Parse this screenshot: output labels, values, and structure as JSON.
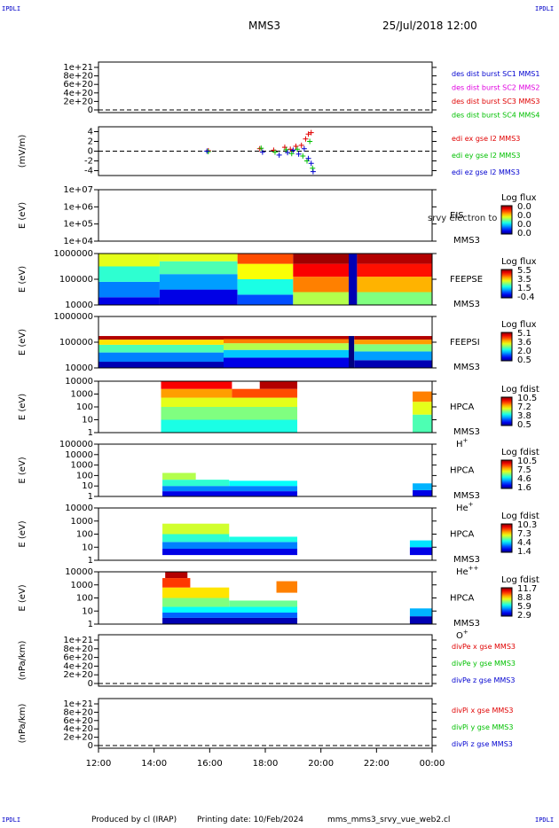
{
  "header": {
    "corner_label": "IPDLI",
    "title": "MMS3",
    "date": "25/Jul/2018 12:00"
  },
  "footer": {
    "produced_by": "Produced by cl (IRAP)",
    "printing_date": "Printing date: 10/Feb/2024",
    "script_name": "mms_mms3_srvy_vue_web2.cl"
  },
  "time_axis": {
    "ticks": [
      "12:00",
      "14:00",
      "16:00",
      "18:00",
      "20:00",
      "22:00",
      "00:00"
    ],
    "range_hours": [
      12,
      24
    ]
  },
  "colors": {
    "red": "#e00000",
    "green": "#00c000",
    "blue": "#0000d0",
    "magenta": "#e000e0",
    "label_blue": "#0000c8"
  },
  "chart_data": [
    {
      "type": "line",
      "panel": "des-dist-burst",
      "ylabel": "",
      "yticks": [
        "1e+21",
        "8e+20",
        "6e+20",
        "4e+20",
        "2e+20",
        "0"
      ],
      "ylim": [
        0,
        1e+21
      ],
      "legend": [
        {
          "name": "des dist burst SC1 MMS1",
          "color": "#0000d0"
        },
        {
          "name": "des dist burst SC2 MMS2",
          "color": "#e000e0"
        },
        {
          "name": "des dist burst SC3 MMS3",
          "color": "#e00000"
        },
        {
          "name": "des dist burst SC4 MMS4",
          "color": "#00c000"
        }
      ],
      "series": []
    },
    {
      "type": "scatter",
      "panel": "edi-e-gse",
      "ylabel": "(mV/m)",
      "yticks": [
        "4",
        "2",
        "0",
        "-2",
        "-4"
      ],
      "ylim": [
        -5,
        5
      ],
      "legend": [
        {
          "name": "edi ex gse l2 MMS3",
          "color": "#e00000"
        },
        {
          "name": "edi ey gse l2 MMS3",
          "color": "#00c000"
        },
        {
          "name": "edi ez gse l2 MMS3",
          "color": "#0000d0"
        }
      ],
      "series": [
        {
          "name": "edi ex gse l2 MMS3",
          "color": "#e00000",
          "x": [
            15.95,
            17.8,
            18.3,
            18.7,
            18.9,
            19.1,
            19.3,
            19.45,
            19.55,
            19.65
          ],
          "y": [
            0.1,
            0.5,
            0.2,
            0.8,
            0.4,
            1.0,
            1.2,
            2.5,
            3.5,
            3.8
          ]
        },
        {
          "name": "edi ey gse l2 MMS3",
          "color": "#00c000",
          "x": [
            15.95,
            17.85,
            18.35,
            18.75,
            18.95,
            19.15,
            19.35,
            19.5,
            19.6,
            19.7
          ],
          "y": [
            -0.1,
            0.6,
            -0.2,
            0.3,
            -0.5,
            0.4,
            -1.0,
            -2.0,
            2.0,
            -3.5
          ]
        },
        {
          "name": "edi ez gse l2 MMS3",
          "color": "#0000d0",
          "x": [
            15.9,
            17.9,
            18.5,
            18.8,
            19.0,
            19.2,
            19.4,
            19.55,
            19.65,
            19.72
          ],
          "y": [
            0.0,
            -0.2,
            -0.8,
            -0.3,
            0.2,
            -0.6,
            0.5,
            -1.5,
            -2.5,
            -4.2
          ]
        }
      ]
    },
    {
      "type": "heatmap",
      "panel": "eis",
      "ylabel": "E (eV)",
      "yticks": [
        "1e+07",
        "1e+06",
        "1e+05",
        "1e+04"
      ],
      "labels": [
        "EIS",
        "MMS3"
      ],
      "overlay_text": "srvy electron to",
      "colorbar": {
        "title": "Log flux",
        "ticks": [
          "0.0",
          "0.0",
          "0.0",
          "0.0"
        ]
      },
      "blocks": []
    },
    {
      "type": "heatmap",
      "panel": "feepse",
      "ylabel": "E (eV)",
      "yticks": [
        "1000000",
        "100000",
        "10000"
      ],
      "labels": [
        "FEEPSE",
        "MMS3"
      ],
      "colorbar": {
        "title": "Log flux",
        "ticks": [
          "5.5",
          "3.5",
          "1.5",
          "-0.4"
        ]
      },
      "blocks": [
        {
          "t0": 12.0,
          "t1": 14.2,
          "e0": 0,
          "e1": 0.15,
          "level": 0.1
        },
        {
          "t0": 12.0,
          "t1": 14.2,
          "e0": 0.15,
          "e1": 0.45,
          "level": 0.25
        },
        {
          "t0": 12.0,
          "t1": 14.2,
          "e0": 0.45,
          "e1": 0.75,
          "level": 0.42
        },
        {
          "t0": 12.0,
          "t1": 14.2,
          "e0": 0.75,
          "e1": 1.0,
          "level": 0.6
        },
        {
          "t0": 14.2,
          "t1": 17.0,
          "e0": 0,
          "e1": 0.3,
          "level": 0.1
        },
        {
          "t0": 14.2,
          "t1": 17.0,
          "e0": 0.3,
          "e1": 0.6,
          "level": 0.28
        },
        {
          "t0": 14.2,
          "t1": 17.0,
          "e0": 0.6,
          "e1": 0.85,
          "level": 0.45
        },
        {
          "t0": 14.2,
          "t1": 17.0,
          "e0": 0.85,
          "e1": 1.0,
          "level": 0.6
        },
        {
          "t0": 17.0,
          "t1": 19.0,
          "e0": 0,
          "e1": 0.2,
          "level": 0.2
        },
        {
          "t0": 17.0,
          "t1": 19.0,
          "e0": 0.2,
          "e1": 0.5,
          "level": 0.4
        },
        {
          "t0": 17.0,
          "t1": 19.0,
          "e0": 0.5,
          "e1": 0.8,
          "level": 0.62
        },
        {
          "t0": 17.0,
          "t1": 19.0,
          "e0": 0.8,
          "e1": 1.0,
          "level": 0.8
        },
        {
          "t0": 19.0,
          "t1": 21.0,
          "e0": 0,
          "e1": 0.25,
          "level": 0.55
        },
        {
          "t0": 19.0,
          "t1": 21.0,
          "e0": 0.25,
          "e1": 0.55,
          "level": 0.75
        },
        {
          "t0": 19.0,
          "t1": 21.0,
          "e0": 0.55,
          "e1": 0.8,
          "level": 0.88
        },
        {
          "t0": 19.0,
          "t1": 21.0,
          "e0": 0.8,
          "e1": 1.0,
          "level": 0.97
        },
        {
          "t0": 21.0,
          "t1": 21.3,
          "e0": 0,
          "e1": 1.0,
          "level": 0.05
        },
        {
          "t0": 21.3,
          "t1": 24.0,
          "e0": 0,
          "e1": 0.25,
          "level": 0.5
        },
        {
          "t0": 21.3,
          "t1": 24.0,
          "e0": 0.25,
          "e1": 0.55,
          "level": 0.7
        },
        {
          "t0": 21.3,
          "t1": 24.0,
          "e0": 0.55,
          "e1": 0.8,
          "level": 0.86
        },
        {
          "t0": 21.3,
          "t1": 24.0,
          "e0": 0.8,
          "e1": 1.0,
          "level": 0.95
        }
      ]
    },
    {
      "type": "heatmap",
      "panel": "feepsi",
      "ylabel": "E (eV)",
      "yticks": [
        "1000000",
        "100000",
        "10000"
      ],
      "labels": [
        "FEEPSI",
        "MMS3"
      ],
      "colorbar": {
        "title": "Log flux",
        "ticks": [
          "5.1",
          "3.6",
          "2.0",
          "0.5"
        ]
      },
      "blocks": [
        {
          "t0": 12.0,
          "t1": 16.5,
          "e0": 0.0,
          "e1": 0.12,
          "level": 0.05
        },
        {
          "t0": 12.0,
          "t1": 16.5,
          "e0": 0.12,
          "e1": 0.3,
          "level": 0.25
        },
        {
          "t0": 12.0,
          "t1": 16.5,
          "e0": 0.3,
          "e1": 0.45,
          "level": 0.45
        },
        {
          "t0": 12.0,
          "t1": 16.5,
          "e0": 0.45,
          "e1": 0.55,
          "level": 0.65
        },
        {
          "t0": 12.0,
          "t1": 16.5,
          "e0": 0.55,
          "e1": 0.62,
          "level": 0.95
        },
        {
          "t0": 16.5,
          "t1": 21.0,
          "e0": 0.0,
          "e1": 0.2,
          "level": 0.1
        },
        {
          "t0": 16.5,
          "t1": 21.0,
          "e0": 0.2,
          "e1": 0.35,
          "level": 0.32
        },
        {
          "t0": 16.5,
          "t1": 21.0,
          "e0": 0.35,
          "e1": 0.48,
          "level": 0.55
        },
        {
          "t0": 16.5,
          "t1": 21.0,
          "e0": 0.48,
          "e1": 0.56,
          "level": 0.75
        },
        {
          "t0": 16.5,
          "t1": 21.0,
          "e0": 0.56,
          "e1": 0.62,
          "level": 0.95
        },
        {
          "t0": 21.0,
          "t1": 21.2,
          "e0": 0.0,
          "e1": 0.62,
          "level": 0.0
        },
        {
          "t0": 21.2,
          "t1": 24.0,
          "e0": 0.0,
          "e1": 0.15,
          "level": 0.05
        },
        {
          "t0": 21.2,
          "t1": 24.0,
          "e0": 0.15,
          "e1": 0.32,
          "level": 0.28
        },
        {
          "t0": 21.2,
          "t1": 24.0,
          "e0": 0.32,
          "e1": 0.46,
          "level": 0.5
        },
        {
          "t0": 21.2,
          "t1": 24.0,
          "e0": 0.46,
          "e1": 0.55,
          "level": 0.72
        },
        {
          "t0": 21.2,
          "t1": 24.0,
          "e0": 0.55,
          "e1": 0.62,
          "level": 0.95
        }
      ]
    },
    {
      "type": "heatmap",
      "panel": "hpca-h",
      "ylabel": "E (eV)",
      "yticks": [
        "10000",
        "1000",
        "100",
        "10",
        "1"
      ],
      "labels": [
        "HPCA",
        "MMS3"
      ],
      "species": {
        "base": "H",
        "sup": "+"
      },
      "colorbar": {
        "title": "Log fdist",
        "ticks": [
          "10.5",
          "7.2",
          "3.8",
          "0.5"
        ]
      },
      "blocks": [
        {
          "t0": 14.25,
          "t1": 19.15,
          "e0": 0.0,
          "e1": 0.25,
          "level": 0.4
        },
        {
          "t0": 14.25,
          "t1": 19.15,
          "e0": 0.25,
          "e1": 0.5,
          "level": 0.5
        },
        {
          "t0": 14.25,
          "t1": 19.15,
          "e0": 0.5,
          "e1": 0.68,
          "level": 0.6
        },
        {
          "t0": 14.25,
          "t1": 16.8,
          "e0": 0.68,
          "e1": 0.85,
          "level": 0.72
        },
        {
          "t0": 16.8,
          "t1": 19.15,
          "e0": 0.68,
          "e1": 0.85,
          "level": 0.8
        },
        {
          "t0": 14.25,
          "t1": 16.8,
          "e0": 0.85,
          "e1": 1.0,
          "level": 0.88
        },
        {
          "t0": 17.8,
          "t1": 19.15,
          "e0": 0.85,
          "e1": 1.0,
          "level": 0.95
        },
        {
          "t0": 23.3,
          "t1": 24.0,
          "e0": 0.0,
          "e1": 0.35,
          "level": 0.45
        },
        {
          "t0": 23.3,
          "t1": 24.0,
          "e0": 0.35,
          "e1": 0.6,
          "level": 0.6
        },
        {
          "t0": 23.3,
          "t1": 24.0,
          "e0": 0.6,
          "e1": 0.8,
          "level": 0.75
        }
      ]
    },
    {
      "type": "heatmap",
      "panel": "hpca-he",
      "ylabel": "E (eV)",
      "yticks": [
        "100000",
        "10000",
        "1000",
        "100",
        "10",
        "1"
      ],
      "labels": [
        "HPCA",
        "MMS3"
      ],
      "species": {
        "base": "He",
        "sup": "+"
      },
      "colorbar": {
        "title": "Log fdist",
        "ticks": [
          "10.5",
          "7.5",
          "4.6",
          "1.6"
        ]
      },
      "blocks": [
        {
          "t0": 14.3,
          "t1": 19.15,
          "e0": 0.0,
          "e1": 0.1,
          "level": 0.1
        },
        {
          "t0": 14.3,
          "t1": 19.15,
          "e0": 0.1,
          "e1": 0.2,
          "level": 0.25
        },
        {
          "t0": 14.3,
          "t1": 16.7,
          "e0": 0.2,
          "e1": 0.32,
          "level": 0.42
        },
        {
          "t0": 16.7,
          "t1": 19.15,
          "e0": 0.2,
          "e1": 0.3,
          "level": 0.38
        },
        {
          "t0": 14.3,
          "t1": 15.5,
          "e0": 0.32,
          "e1": 0.45,
          "level": 0.55
        },
        {
          "t0": 23.3,
          "t1": 24.0,
          "e0": 0.0,
          "e1": 0.12,
          "level": 0.1
        },
        {
          "t0": 23.3,
          "t1": 24.0,
          "e0": 0.12,
          "e1": 0.25,
          "level": 0.3
        }
      ]
    },
    {
      "type": "heatmap",
      "panel": "hpca-he2",
      "ylabel": "E (eV)",
      "yticks": [
        "10000",
        "1000",
        "100",
        "10",
        "1"
      ],
      "labels": [
        "HPCA",
        "MMS3"
      ],
      "species": {
        "base": "He",
        "sup": "++"
      },
      "colorbar": {
        "title": "Log fdist",
        "ticks": [
          "10.3",
          "7.3",
          "4.4",
          "1.4"
        ]
      },
      "blocks": [
        {
          "t0": 14.3,
          "t1": 19.15,
          "e0": 0.1,
          "e1": 0.22,
          "level": 0.1
        },
        {
          "t0": 14.3,
          "t1": 19.15,
          "e0": 0.22,
          "e1": 0.35,
          "level": 0.25
        },
        {
          "t0": 14.3,
          "t1": 16.7,
          "e0": 0.35,
          "e1": 0.5,
          "level": 0.42
        },
        {
          "t0": 16.7,
          "t1": 19.15,
          "e0": 0.35,
          "e1": 0.45,
          "level": 0.4
        },
        {
          "t0": 14.3,
          "t1": 16.7,
          "e0": 0.5,
          "e1": 0.7,
          "level": 0.58
        },
        {
          "t0": 23.2,
          "t1": 24.0,
          "e0": 0.1,
          "e1": 0.25,
          "level": 0.1
        },
        {
          "t0": 23.2,
          "t1": 24.0,
          "e0": 0.25,
          "e1": 0.38,
          "level": 0.35
        }
      ]
    },
    {
      "type": "heatmap",
      "panel": "hpca-o",
      "ylabel": "E (eV)",
      "yticks": [
        "10000",
        "1000",
        "100",
        "10",
        "1"
      ],
      "labels": [
        "HPCA",
        "MMS3"
      ],
      "species": {
        "base": "O",
        "sup": "+"
      },
      "colorbar": {
        "title": "Log fdist",
        "ticks": [
          "11.7",
          "8.8",
          "5.9",
          "2.9"
        ]
      },
      "blocks": [
        {
          "t0": 14.3,
          "t1": 19.15,
          "e0": 0.0,
          "e1": 0.12,
          "level": 0.05
        },
        {
          "t0": 14.3,
          "t1": 19.15,
          "e0": 0.12,
          "e1": 0.22,
          "level": 0.22
        },
        {
          "t0": 14.3,
          "t1": 19.15,
          "e0": 0.22,
          "e1": 0.33,
          "level": 0.38
        },
        {
          "t0": 14.3,
          "t1": 16.7,
          "e0": 0.33,
          "e1": 0.5,
          "level": 0.5
        },
        {
          "t0": 16.7,
          "t1": 19.15,
          "e0": 0.33,
          "e1": 0.45,
          "level": 0.48
        },
        {
          "t0": 14.3,
          "t1": 16.7,
          "e0": 0.5,
          "e1": 0.7,
          "level": 0.65
        },
        {
          "t0": 14.3,
          "t1": 15.3,
          "e0": 0.7,
          "e1": 0.88,
          "level": 0.82
        },
        {
          "t0": 14.4,
          "t1": 15.2,
          "e0": 0.88,
          "e1": 1.0,
          "level": 0.95
        },
        {
          "t0": 18.4,
          "t1": 19.15,
          "e0": 0.6,
          "e1": 0.82,
          "level": 0.75
        },
        {
          "t0": 23.2,
          "t1": 24.0,
          "e0": 0.0,
          "e1": 0.15,
          "level": 0.05
        },
        {
          "t0": 23.2,
          "t1": 24.0,
          "e0": 0.15,
          "e1": 0.3,
          "level": 0.3
        }
      ]
    },
    {
      "type": "line",
      "panel": "divpe",
      "ylabel": "(nPa/km)",
      "yticks": [
        "1e+21",
        "8e+20",
        "6e+20",
        "4e+20",
        "2e+20",
        "0"
      ],
      "ylim": [
        0,
        1e+21
      ],
      "legend": [
        {
          "name": "divPe x gse MMS3",
          "color": "#e00000"
        },
        {
          "name": "divPe y gse MMS3",
          "color": "#00c000"
        },
        {
          "name": "divPe z gse MMS3",
          "color": "#0000d0"
        }
      ],
      "series": []
    },
    {
      "type": "line",
      "panel": "divpi",
      "ylabel": "(nPa/km)",
      "yticks": [
        "1e+21",
        "8e+20",
        "6e+20",
        "4e+20",
        "2e+20",
        "0"
      ],
      "ylim": [
        0,
        1e+21
      ],
      "legend": [
        {
          "name": "divPi x gse MMS3",
          "color": "#e00000"
        },
        {
          "name": "divPi y gse MMS3",
          "color": "#00c000"
        },
        {
          "name": "divPi z gse MMS3",
          "color": "#0000d0"
        }
      ],
      "series": []
    }
  ]
}
